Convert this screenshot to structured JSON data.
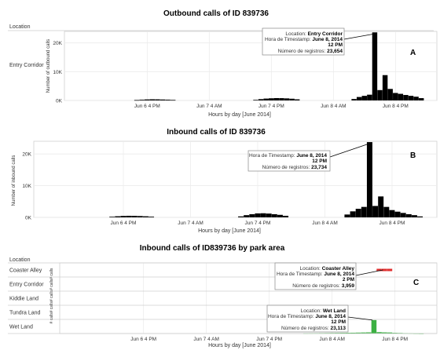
{
  "chart_data": [
    {
      "type": "bar",
      "title": "Outbound calls of ID 839736",
      "row_dimension_header": "Location",
      "row_labels": [
        "Entry Corridor"
      ],
      "xlabel": "Hours by day [June 2014]",
      "ylabel": "Number of outbound calls",
      "x_ticks": [
        "Jun 6 4 PM",
        "Jun 7 4 AM",
        "Jun 7 4 PM",
        "Jun 8 4 AM",
        "Jun 8 4 PM"
      ],
      "y_ticks": [
        "0K",
        "10K",
        "20K"
      ],
      "ylim": [
        0,
        24000
      ],
      "grid": true,
      "panel_label": "A",
      "bar_color": "#000000",
      "series": [
        {
          "row": "Entry Corridor",
          "x": [
            "Jun 6 2 PM",
            "Jun 6 3 PM",
            "Jun 6 4 PM",
            "Jun 6 5 PM",
            "Jun 6 6 PM",
            "Jun 6 7 PM",
            "Jun 6 8 PM",
            "Jun 6 9 PM",
            "Jun 7 1 PM",
            "Jun 7 2 PM",
            "Jun 7 3 PM",
            "Jun 7 4 PM",
            "Jun 7 5 PM",
            "Jun 7 6 PM",
            "Jun 7 7 PM",
            "Jun 7 8 PM",
            "Jun 7 9 PM",
            "Jun 8 8 AM",
            "Jun 8 9 AM",
            "Jun 8 10 AM",
            "Jun 8 11 AM",
            "Jun 8 12 PM",
            "Jun 8 1 PM",
            "Jun 8 2 PM",
            "Jun 8 3 PM",
            "Jun 8 4 PM",
            "Jun 8 5 PM",
            "Jun 8 6 PM",
            "Jun 8 7 PM",
            "Jun 8 8 PM",
            "Jun 8 9 PM"
          ],
          "values": [
            150,
            250,
            350,
            400,
            380,
            320,
            260,
            180,
            200,
            450,
            650,
            750,
            820,
            800,
            720,
            600,
            380,
            500,
            1200,
            1600,
            2000,
            23654,
            3600,
            8800,
            4000,
            2600,
            2300,
            1900,
            1600,
            1300,
            800
          ]
        }
      ],
      "tooltip": {
        "location_label": "Location:",
        "location_value": "Entry Corridor",
        "time_label": "Hora de Timestamp:",
        "time_value": "June 8, 2014",
        "time_value_2": "12 PM",
        "count_label": "Número de registros:",
        "count_value": "23,654"
      }
    },
    {
      "type": "bar",
      "title": "Inbound calls of ID 839736",
      "xlabel": "Hours by day [June 2014]",
      "ylabel": "Number of inbound calls",
      "x_ticks": [
        "Jun 6 4 PM",
        "Jun 7 4 AM",
        "Jun 7 4 PM",
        "Jun 8 4 AM",
        "Jun 8 4 PM"
      ],
      "y_ticks": [
        "0K",
        "10K",
        "20K"
      ],
      "ylim": [
        0,
        24000
      ],
      "grid": true,
      "panel_label": "B",
      "bar_color": "#000000",
      "series": [
        {
          "x": [
            "Jun 6 2 PM",
            "Jun 6 3 PM",
            "Jun 6 4 PM",
            "Jun 6 5 PM",
            "Jun 6 6 PM",
            "Jun 6 7 PM",
            "Jun 6 8 PM",
            "Jun 6 9 PM",
            "Jun 7 1 PM",
            "Jun 7 2 PM",
            "Jun 7 3 PM",
            "Jun 7 4 PM",
            "Jun 7 5 PM",
            "Jun 7 6 PM",
            "Jun 7 7 PM",
            "Jun 7 8 PM",
            "Jun 7 9 PM",
            "Jun 8 8 AM",
            "Jun 8 9 AM",
            "Jun 8 10 AM",
            "Jun 8 11 AM",
            "Jun 8 12 PM",
            "Jun 8 1 PM",
            "Jun 8 2 PM",
            "Jun 8 3 PM",
            "Jun 8 4 PM",
            "Jun 8 5 PM",
            "Jun 8 6 PM",
            "Jun 8 7 PM",
            "Jun 8 8 PM",
            "Jun 8 9 PM"
          ],
          "values": [
            200,
            350,
            450,
            500,
            480,
            420,
            340,
            220,
            300,
            700,
            1000,
            1250,
            1300,
            1200,
            1000,
            800,
            500,
            900,
            1900,
            2700,
            3300,
            23734,
            3600,
            6600,
            3300,
            2300,
            1800,
            1400,
            1000,
            700,
            300
          ]
        }
      ],
      "tooltip": {
        "time_label": "Hora de Timestamp:",
        "time_value": "June 8, 2014",
        "time_value_2": "12 PM",
        "count_label": "Número de registros:",
        "count_value": "23,734"
      }
    },
    {
      "type": "bar",
      "title": "Inbound calls of ID839736 by park area",
      "row_dimension_header": "Location",
      "row_labels": [
        "Coaster Alley",
        "Entry Corridor",
        "Kiddie Land",
        "Tundra Land",
        "Wet Land"
      ],
      "xlabel": "Hours by day [June 2014]",
      "ylabel_text": "# calls# calls# calls# calls# calls",
      "x_ticks": [
        "Jun 6 4 PM",
        "Jun 7 4 AM",
        "Jun 7 4 PM",
        "Jun 8 4 AM",
        "Jun 8 4 PM"
      ],
      "ylim": [
        0,
        24000
      ],
      "grid": true,
      "panel_label": "C",
      "series": [
        {
          "row": "Coaster Alley",
          "color": "#e03030",
          "x": [
            "Jun 8 1 PM",
            "Jun 8 2 PM",
            "Jun 8 3 PM"
          ],
          "values": [
            800,
            3959,
            1500
          ]
        },
        {
          "row": "Entry Corridor",
          "color": "#000000",
          "x": [],
          "values": []
        },
        {
          "row": "Kiddie Land",
          "color": "#000000",
          "x": [],
          "values": []
        },
        {
          "row": "Tundra Land",
          "color": "#000000",
          "x": [],
          "values": []
        },
        {
          "row": "Wet Land",
          "color": "#3cb043",
          "x": [
            "Jun 7 11 PM",
            "Jun 8 12 AM",
            "Jun 8 1 AM",
            "Jun 8 2 AM",
            "Jun 8 3 AM",
            "Jun 8 4 AM",
            "Jun 8 5 AM",
            "Jun 8 6 AM",
            "Jun 8 7 AM",
            "Jun 8 8 AM",
            "Jun 8 9 AM",
            "Jun 8 10 AM",
            "Jun 8 11 AM",
            "Jun 8 12 PM",
            "Jun 8 1 PM",
            "Jun 8 2 PM",
            "Jun 8 3 PM",
            "Jun 8 4 PM",
            "Jun 8 5 PM",
            "Jun 8 6 PM",
            "Jun 8 7 PM",
            "Jun 8 8 PM",
            "Jun 8 9 PM"
          ],
          "values": [
            400,
            600,
            700,
            800,
            900,
            1000,
            1100,
            1200,
            1300,
            1400,
            1600,
            1800,
            2000,
            23113,
            2400,
            2000,
            1800,
            1200,
            1000,
            700,
            500,
            300,
            200
          ]
        }
      ],
      "tooltips": [
        {
          "location_label": "Location:",
          "location_value": "Coaster Alley",
          "time_label": "Hora de Timestamp:",
          "time_value": "June 8, 2014",
          "time_value_2": "2 PM",
          "count_label": "Número de registros:",
          "count_value": "3,959"
        },
        {
          "location_label": "Location:",
          "location_value": "Wet Land",
          "time_label": "Hora de Timestamp:",
          "time_value": "June 8, 2014",
          "time_value_2": "12 PM",
          "count_label": "Número de registros:",
          "count_value": "23,113"
        }
      ]
    }
  ]
}
